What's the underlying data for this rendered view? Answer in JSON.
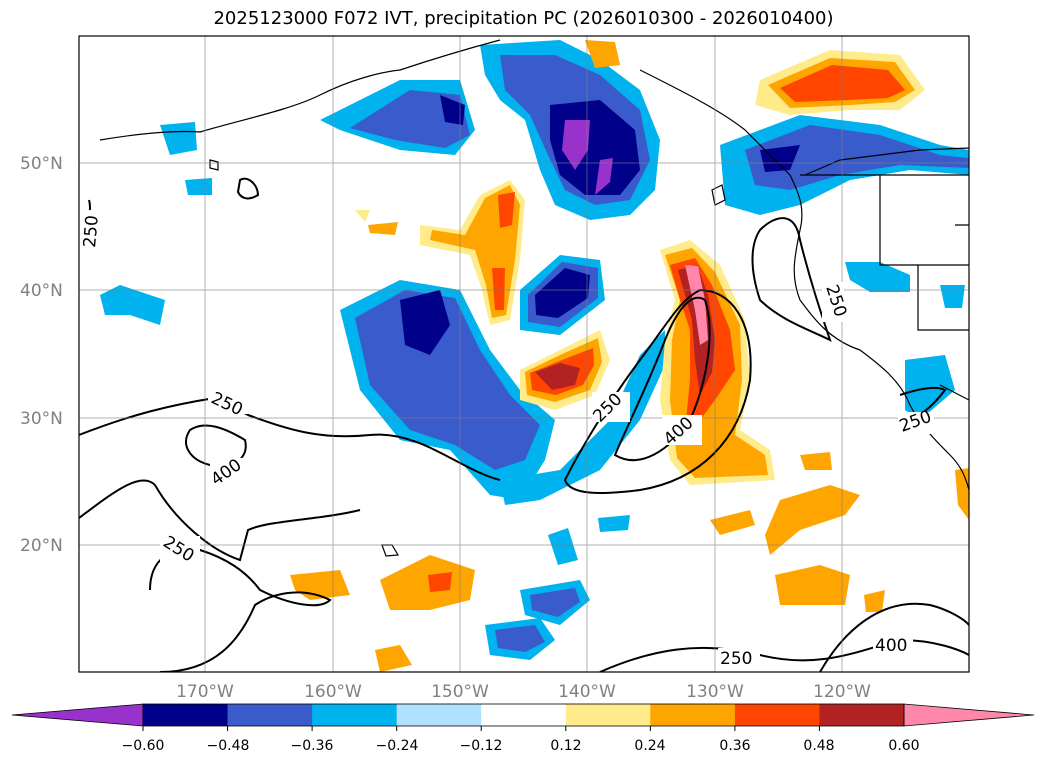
{
  "title": "2025123000 F072 IVT, precipitation PC (2026010300 - 2026010400)",
  "map": {
    "lat_labels": [
      "50°N",
      "40°N",
      "30°N",
      "20°N"
    ],
    "lon_labels": [
      "170°W",
      "160°W",
      "150°W",
      "140°W",
      "130°W",
      "120°W"
    ],
    "contour_levels": [
      250,
      400
    ],
    "contour_labels": [
      "250",
      "250",
      "400",
      "250",
      "250",
      "400",
      "250",
      "250",
      "400",
      "250"
    ]
  },
  "colorbar": {
    "ticks": [
      "−0.60",
      "−0.48",
      "−0.36",
      "−0.24",
      "−0.12",
      "0.12",
      "0.24",
      "0.36",
      "0.48",
      "0.60"
    ],
    "colors": [
      "#9932cc",
      "#00008b",
      "#3a5bcc",
      "#00b2ee",
      "#b0e2ff",
      "#ffffff",
      "#ffeb8a",
      "#ffa500",
      "#ff4500",
      "#b22222",
      "#ff88aa"
    ]
  }
}
